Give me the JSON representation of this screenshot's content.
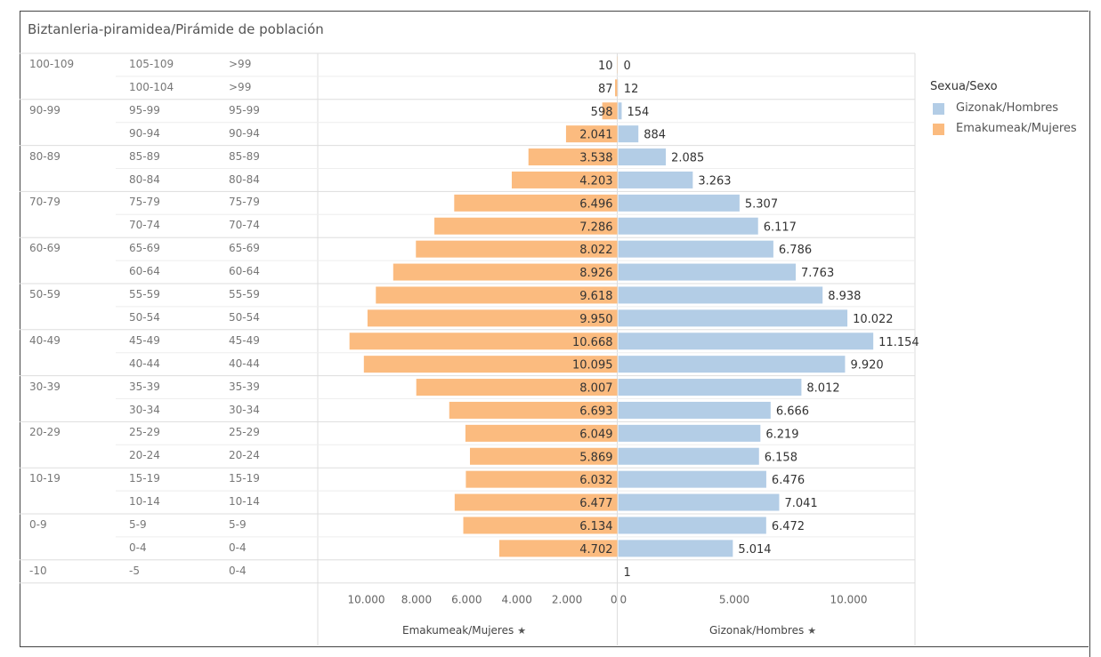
{
  "title": "Biztanleria-piramidea/Pirámide de población",
  "legend": {
    "title": "Sexua/Sexo",
    "items": [
      {
        "label": "Gizonak/Hombres",
        "color": "#b3cde6"
      },
      {
        "label": "Emakumeak/Mujeres",
        "color": "#fbbb7f"
      }
    ]
  },
  "chart_data": {
    "type": "bar",
    "title": "Biztanleria-piramidea/Pirámide de población",
    "orientation": "horizontal-pyramid",
    "group_labels": [
      "100-109",
      "90-99",
      "80-89",
      "70-79",
      "60-69",
      "50-59",
      "40-49",
      "30-39",
      "20-29",
      "10-19",
      "0-9",
      "-10"
    ],
    "rows": [
      {
        "group": "100-109",
        "age": "105-109",
        "age2": ">99"
      },
      {
        "group": "",
        "age": "100-104",
        "age2": ">99"
      },
      {
        "group": "90-99",
        "age": "95-99",
        "age2": "95-99"
      },
      {
        "group": "",
        "age": "90-94",
        "age2": "90-94"
      },
      {
        "group": "80-89",
        "age": "85-89",
        "age2": "85-89"
      },
      {
        "group": "",
        "age": "80-84",
        "age2": "80-84"
      },
      {
        "group": "70-79",
        "age": "75-79",
        "age2": "75-79"
      },
      {
        "group": "",
        "age": "70-74",
        "age2": "70-74"
      },
      {
        "group": "60-69",
        "age": "65-69",
        "age2": "65-69"
      },
      {
        "group": "",
        "age": "60-64",
        "age2": "60-64"
      },
      {
        "group": "50-59",
        "age": "55-59",
        "age2": "55-59"
      },
      {
        "group": "",
        "age": "50-54",
        "age2": "50-54"
      },
      {
        "group": "40-49",
        "age": "45-49",
        "age2": "45-49"
      },
      {
        "group": "",
        "age": "40-44",
        "age2": "40-44"
      },
      {
        "group": "30-39",
        "age": "35-39",
        "age2": "35-39"
      },
      {
        "group": "",
        "age": "30-34",
        "age2": "30-34"
      },
      {
        "group": "20-29",
        "age": "25-29",
        "age2": "25-29"
      },
      {
        "group": "",
        "age": "20-24",
        "age2": "20-24"
      },
      {
        "group": "10-19",
        "age": "15-19",
        "age2": "15-19"
      },
      {
        "group": "",
        "age": "10-14",
        "age2": "10-14"
      },
      {
        "group": "0-9",
        "age": "5-9",
        "age2": "5-9"
      },
      {
        "group": "",
        "age": "0-4",
        "age2": "0-4"
      },
      {
        "group": "-10",
        "age": "-5",
        "age2": "0-4"
      }
    ],
    "series": [
      {
        "name": "Emakumeak/Mujeres",
        "color": "#fbbb7f",
        "values": [
          10,
          87,
          598,
          2041,
          3538,
          4203,
          6496,
          7286,
          8022,
          8926,
          9618,
          9950,
          10668,
          10095,
          8007,
          6693,
          6049,
          5869,
          6032,
          6477,
          6134,
          4702,
          null
        ],
        "labels": [
          "10",
          "87",
          "598",
          "2.041",
          "3.538",
          "4.203",
          "6.496",
          "7.286",
          "8.022",
          "8.926",
          "9.618",
          "9.950",
          "10.668",
          "10.095",
          "8.007",
          "6.693",
          "6.049",
          "5.869",
          "6.032",
          "6.477",
          "6.134",
          "4.702",
          ""
        ]
      },
      {
        "name": "Gizonak/Hombres",
        "color": "#b3cde6",
        "values": [
          0,
          12,
          154,
          884,
          2085,
          3263,
          5307,
          6117,
          6786,
          7763,
          8938,
          10022,
          11154,
          9920,
          8012,
          6666,
          6219,
          6158,
          6476,
          7041,
          6472,
          5014,
          1
        ],
        "labels": [
          "0",
          "12",
          "154",
          "884",
          "2.085",
          "3.263",
          "5.307",
          "6.117",
          "6.786",
          "7.763",
          "8.938",
          "10.022",
          "11.154",
          "9.920",
          "8.012",
          "6.666",
          "6.219",
          "6.158",
          "6.476",
          "7.041",
          "6.472",
          "5.014",
          "1"
        ]
      }
    ],
    "left_axis": {
      "label": "Emakumeak/Mujeres",
      "ticks": [
        10000,
        8000,
        6000,
        4000,
        2000,
        0
      ],
      "tick_labels": [
        "10.000",
        "8.000",
        "6.000",
        "4.000",
        "2.000",
        "0"
      ]
    },
    "right_axis": {
      "label": "Gizonak/Hombres",
      "ticks": [
        0,
        5000,
        10000
      ],
      "tick_labels": [
        "0",
        "5.000",
        "10.000"
      ]
    },
    "xlim": [
      0,
      12000
    ]
  }
}
